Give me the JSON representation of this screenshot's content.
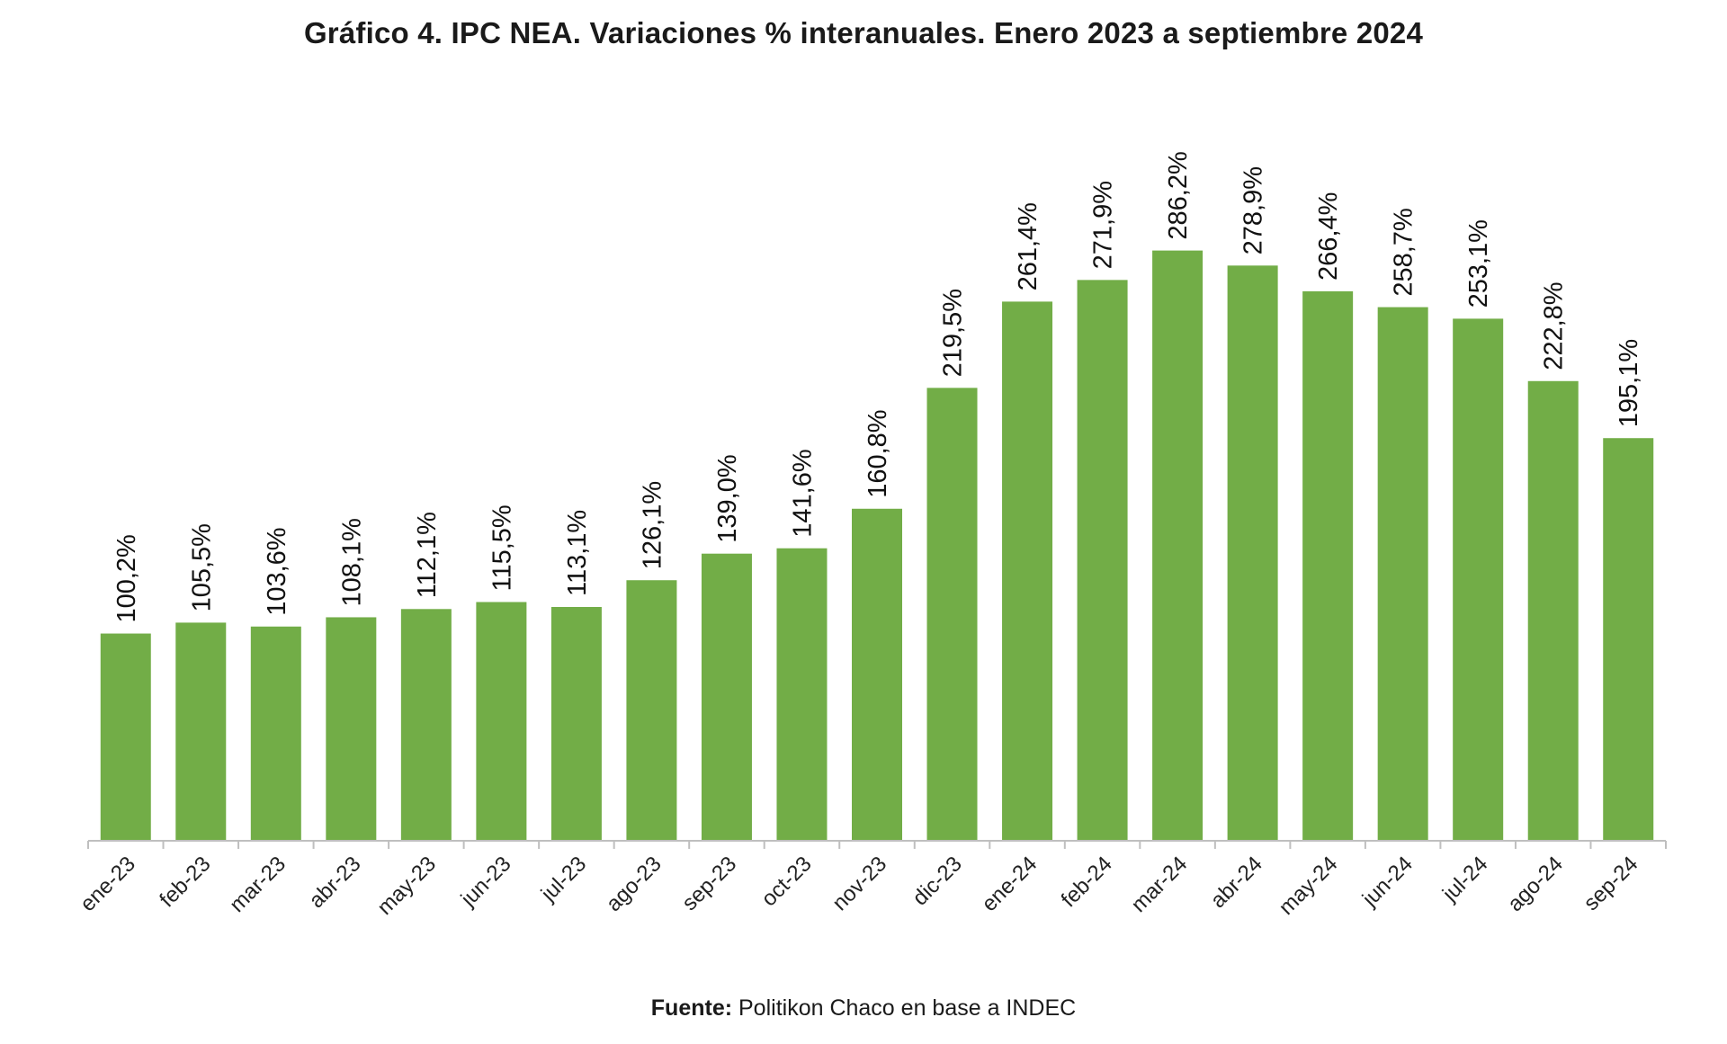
{
  "chart_data": {
    "type": "bar",
    "title": "Gráfico 4. IPC NEA. Variaciones % interanuales. Enero 2023 a septiembre 2024",
    "categories": [
      "ene-23",
      "feb-23",
      "mar-23",
      "abr-23",
      "may-23",
      "jun-23",
      "jul-23",
      "ago-23",
      "sep-23",
      "oct-23",
      "nov-23",
      "dic-23",
      "ene-24",
      "feb-24",
      "mar-24",
      "abr-24",
      "may-24",
      "jun-24",
      "jul-24",
      "ago-24",
      "sep-24"
    ],
    "values": [
      100.2,
      105.5,
      103.6,
      108.1,
      112.1,
      115.5,
      113.1,
      126.1,
      139.0,
      141.6,
      160.8,
      219.5,
      261.4,
      271.9,
      286.2,
      278.9,
      266.4,
      258.7,
      253.1,
      222.8,
      195.1
    ],
    "data_labels": [
      "100,2%",
      "105,5%",
      "103,6%",
      "108,1%",
      "112,1%",
      "115,5%",
      "113,1%",
      "126,1%",
      "139,0%",
      "141,6%",
      "160,8%",
      "219,5%",
      "261,4%",
      "271,9%",
      "286,2%",
      "278,9%",
      "266,4%",
      "258,7%",
      "253,1%",
      "222,8%",
      "195,1%"
    ],
    "bar_color": "#72ad47",
    "ylim": [
      0,
      300
    ],
    "grid": false,
    "legend": "none",
    "xlabel": "",
    "ylabel": ""
  },
  "source": {
    "label": "Fuente:",
    "text": " Politikon Chaco en base a INDEC"
  }
}
